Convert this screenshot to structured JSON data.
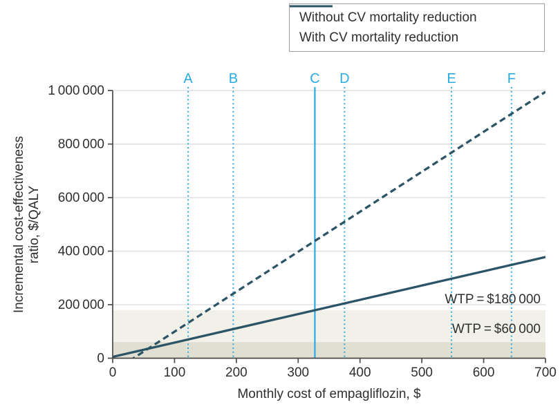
{
  "figure": {
    "legend": {
      "items": [
        {
          "label": "Without CV mortality reduction",
          "style": "dashed"
        },
        {
          "label": "With CV mortality reduction",
          "style": "solid"
        }
      ]
    },
    "y_axis_title_line1": "Incremental cost-effectiveness",
    "y_axis_title_line2": "ratio, $/QALY",
    "x_axis_title": "Monthly cost of empagliflozin, $"
  },
  "chart_data": {
    "type": "line",
    "title": "",
    "xlabel": "Monthly cost of empagliflozin, $",
    "ylabel": "Incremental cost-effectiveness ratio, $/QALY",
    "xlim": [
      0,
      700
    ],
    "ylim": [
      0,
      1000000
    ],
    "x_ticks": [
      0,
      100,
      200,
      300,
      400,
      500,
      600,
      700
    ],
    "x_tick_labels": [
      "0",
      "100",
      "200",
      "300",
      "400",
      "500",
      "600",
      "700"
    ],
    "y_ticks": [
      0,
      200000,
      400000,
      600000,
      800000,
      1000000
    ],
    "y_tick_labels": [
      "0",
      "200 000",
      "400 000",
      "600 000",
      "800 000",
      "1 000 000"
    ],
    "grid": "horizontal",
    "legend_position": "top-right",
    "series": [
      {
        "name": "Without CV mortality reduction",
        "style": "dashed",
        "color": "#2b5566",
        "points": [
          [
            0,
            -50000
          ],
          [
            700,
            995000
          ]
        ]
      },
      {
        "name": "With CV mortality reduction",
        "style": "solid",
        "color": "#2b5566",
        "points": [
          [
            0,
            5000
          ],
          [
            700,
            378000
          ]
        ]
      }
    ],
    "vertical_markers": [
      {
        "label": "A",
        "x": 122,
        "style": "dotted"
      },
      {
        "label": "B",
        "x": 195,
        "style": "dotted"
      },
      {
        "label": "C",
        "x": 327,
        "style": "solid"
      },
      {
        "label": "D",
        "x": 375,
        "style": "dotted"
      },
      {
        "label": "E",
        "x": 548,
        "style": "dotted"
      },
      {
        "label": "F",
        "x": 645,
        "style": "dotted"
      }
    ],
    "marker_color": "#29abe2",
    "wtp_bands": [
      {
        "label": "WTP = $180 000",
        "value": 180000,
        "color": "#f2f1e9"
      },
      {
        "label": "WTP = $60 000",
        "value": 60000,
        "color": "#e1ded2"
      }
    ],
    "colors": {
      "line": "#2b5566",
      "marker": "#29abe2",
      "grid": "#d9d9d9",
      "axis": "#4a4a4a",
      "text": "#2f2f2f",
      "band_high": "#f2f1e9",
      "band_low": "#e1ded2"
    }
  }
}
